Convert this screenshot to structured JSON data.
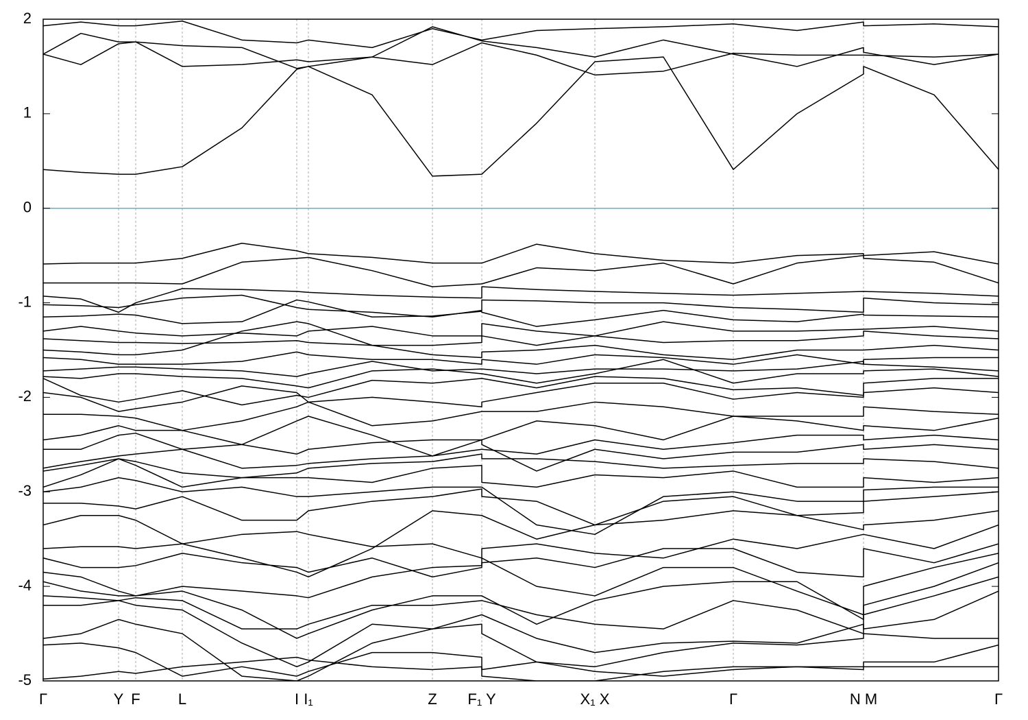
{
  "chart_data": {
    "type": "line",
    "color": "#000000",
    "grid": true,
    "zero_line": {
      "value": 0,
      "color": "#5bb3cf"
    },
    "xlim": [
      0,
      1.394
    ],
    "ylim": [
      -5,
      2
    ],
    "yticks": [
      -5,
      -4,
      -3,
      -2,
      -1,
      0,
      1,
      2
    ],
    "xticks": [
      {
        "value": 0,
        "label": "Γ"
      },
      {
        "value": 0.11,
        "label": "Y"
      },
      {
        "value": 0.135,
        "label": "F"
      },
      {
        "value": 0.203,
        "label": "L"
      },
      {
        "value": 0.37,
        "label": "I"
      },
      {
        "value": 0.387,
        "label": "I₁"
      },
      {
        "value": 0.568,
        "label": "Z"
      },
      {
        "value": 0.64,
        "label": "F₁ Y"
      },
      {
        "value": 0.805,
        "label": "X₁ X"
      },
      {
        "value": 1.007,
        "label": "Γ"
      },
      {
        "value": 1.197,
        "label": "N M"
      },
      {
        "value": 1.394,
        "label": "Γ"
      }
    ],
    "x": [
      0,
      0.055,
      0.11,
      0.135,
      0.203,
      0.29,
      0.37,
      0.387,
      0.48,
      0.568,
      0.64,
      0.64,
      0.72,
      0.805,
      0.905,
      1.007,
      1.1,
      1.197,
      1.197,
      1.3,
      1.394
    ],
    "series": [
      {
        "values": [
          0.41,
          0.38,
          0.36,
          0.36,
          0.44,
          0.85,
          1.47,
          1.5,
          1.2,
          0.34,
          0.36,
          0.36,
          0.9,
          1.55,
          1.6,
          0.41,
          1.0,
          1.42,
          1.5,
          1.2,
          0.41
        ]
      },
      {
        "values": [
          1.63,
          1.52,
          1.74,
          1.76,
          1.5,
          1.52,
          1.57,
          1.55,
          1.6,
          1.52,
          1.75,
          1.75,
          1.62,
          1.41,
          1.45,
          1.64,
          1.62,
          1.62,
          1.62,
          1.6,
          1.63
        ]
      },
      {
        "values": [
          1.63,
          1.85,
          1.76,
          1.76,
          1.72,
          1.7,
          1.48,
          1.5,
          1.6,
          1.92,
          1.77,
          1.77,
          1.7,
          1.6,
          1.78,
          1.63,
          1.5,
          1.7,
          1.65,
          1.52,
          1.63
        ]
      },
      {
        "values": [
          1.93,
          1.97,
          1.93,
          1.93,
          1.98,
          1.78,
          1.75,
          1.78,
          1.7,
          1.9,
          1.78,
          1.78,
          1.88,
          1.9,
          1.92,
          1.95,
          1.88,
          1.97,
          1.93,
          1.95,
          1.92
        ]
      },
      {
        "values": [
          -0.59,
          -0.58,
          -0.58,
          -0.58,
          -0.53,
          -0.37,
          -0.45,
          -0.48,
          -0.52,
          -0.58,
          -0.58,
          -0.58,
          -0.38,
          -0.48,
          -0.55,
          -0.58,
          -0.5,
          -0.48,
          -0.5,
          -0.46,
          -0.59
        ]
      },
      {
        "values": [
          -0.79,
          -0.79,
          -0.79,
          -0.79,
          -0.8,
          -0.57,
          -0.53,
          -0.52,
          -0.66,
          -0.83,
          -0.8,
          -0.8,
          -0.63,
          -0.66,
          -0.58,
          -0.8,
          -0.58,
          -0.5,
          -0.53,
          -0.57,
          -0.79
        ]
      },
      {
        "values": [
          -0.93,
          -0.96,
          -1.1,
          -1.0,
          -0.85,
          -0.86,
          -0.88,
          -0.89,
          -0.92,
          -0.94,
          -0.95,
          -0.83,
          -0.86,
          -0.88,
          -0.9,
          -0.92,
          -0.9,
          -0.88,
          -0.88,
          -0.9,
          -0.93
        ]
      },
      {
        "values": [
          -1.02,
          -1.03,
          -1.05,
          -1.02,
          -0.95,
          -0.92,
          -1.05,
          -1.07,
          -1.1,
          -1.15,
          -1.08,
          -0.97,
          -0.98,
          -1.0,
          -1.0,
          -1.05,
          -1.07,
          -1.1,
          -0.95,
          -1.0,
          -1.02
        ]
      },
      {
        "values": [
          -1.15,
          -1.14,
          -1.12,
          -1.13,
          -1.22,
          -1.2,
          -0.97,
          -0.99,
          -1.15,
          -1.14,
          -1.09,
          -1.1,
          -1.25,
          -1.18,
          -1.08,
          -1.18,
          -1.2,
          -1.12,
          -1.13,
          -1.14,
          -1.15
        ]
      },
      {
        "values": [
          -1.3,
          -1.25,
          -1.3,
          -1.32,
          -1.35,
          -1.32,
          -1.35,
          -1.3,
          -1.25,
          -1.35,
          -1.35,
          -1.22,
          -1.3,
          -1.35,
          -1.2,
          -1.3,
          -1.3,
          -1.28,
          -1.28,
          -1.25,
          -1.3
        ]
      },
      {
        "values": [
          -1.38,
          -1.4,
          -1.42,
          -1.42,
          -1.43,
          -1.42,
          -1.4,
          -1.42,
          -1.45,
          -1.45,
          -1.42,
          -1.35,
          -1.45,
          -1.35,
          -1.42,
          -1.4,
          -1.4,
          -1.35,
          -1.3,
          -1.35,
          -1.38
        ]
      },
      {
        "values": [
          -1.5,
          -1.52,
          -1.55,
          -1.55,
          -1.5,
          -1.3,
          -1.2,
          -1.22,
          -1.45,
          -1.55,
          -1.58,
          -1.52,
          -1.5,
          -1.45,
          -1.55,
          -1.6,
          -1.5,
          -1.5,
          -1.5,
          -1.45,
          -1.5
        ]
      },
      {
        "values": [
          -1.58,
          -1.6,
          -1.65,
          -1.65,
          -1.65,
          -1.62,
          -1.52,
          -1.55,
          -1.6,
          -1.6,
          -1.65,
          -1.6,
          -1.65,
          -1.55,
          -1.58,
          -1.65,
          -1.55,
          -1.65,
          -1.6,
          -1.58,
          -1.58
        ]
      },
      {
        "values": [
          -1.72,
          -1.7,
          -1.68,
          -1.68,
          -1.7,
          -1.72,
          -1.78,
          -1.75,
          -1.62,
          -1.72,
          -1.7,
          -1.7,
          -1.75,
          -1.7,
          -1.7,
          -1.72,
          -1.7,
          -1.62,
          -1.65,
          -1.68,
          -1.72
        ]
      },
      {
        "values": [
          -1.78,
          -1.8,
          -1.75,
          -1.75,
          -1.78,
          -1.8,
          -1.88,
          -1.9,
          -1.72,
          -1.7,
          -1.75,
          -1.75,
          -1.85,
          -1.75,
          -1.6,
          -1.85,
          -1.75,
          -1.75,
          -1.72,
          -1.7,
          -1.78
        ]
      },
      {
        "values": [
          -1.8,
          -1.98,
          -2.05,
          -2.02,
          -1.93,
          -2.08,
          -1.98,
          -2.0,
          -1.82,
          -1.85,
          -1.8,
          -1.8,
          -1.9,
          -1.78,
          -1.8,
          -1.92,
          -1.9,
          -1.98,
          -1.85,
          -1.8,
          -1.8
        ]
      },
      {
        "values": [
          -1.95,
          -2.0,
          -2.15,
          -2.12,
          -2.05,
          -1.88,
          -1.95,
          -2.05,
          -2.0,
          -2.05,
          -2.1,
          -2.05,
          -1.95,
          -1.85,
          -1.85,
          -2.02,
          -1.95,
          -2.0,
          -1.95,
          -1.9,
          -1.95
        ]
      },
      {
        "values": [
          -2.18,
          -2.18,
          -2.2,
          -2.22,
          -2.35,
          -2.25,
          -2.1,
          -2.05,
          -2.3,
          -2.25,
          -2.15,
          -2.15,
          -2.15,
          -2.05,
          -2.1,
          -2.2,
          -2.2,
          -2.2,
          -2.1,
          -2.15,
          -2.18
        ]
      },
      {
        "values": [
          -2.45,
          -2.4,
          -2.3,
          -2.35,
          -2.35,
          -2.5,
          -2.6,
          -2.55,
          -2.48,
          -2.45,
          -2.45,
          -2.45,
          -2.25,
          -2.3,
          -2.45,
          -2.2,
          -2.25,
          -2.35,
          -2.3,
          -2.35,
          -2.22
        ]
      },
      {
        "values": [
          -2.55,
          -2.55,
          -2.4,
          -2.38,
          -2.55,
          -2.75,
          -2.72,
          -2.7,
          -2.65,
          -2.62,
          -2.55,
          -2.55,
          -2.6,
          -2.45,
          -2.55,
          -2.48,
          -2.4,
          -2.4,
          -2.45,
          -2.4,
          -2.45
        ]
      },
      {
        "values": [
          -2.75,
          -2.68,
          -2.62,
          -2.6,
          -2.55,
          -2.5,
          -2.25,
          -2.2,
          -2.4,
          -2.62,
          -2.45,
          -2.5,
          -2.78,
          -2.55,
          -2.65,
          -2.58,
          -2.58,
          -2.5,
          -2.55,
          -2.5,
          -2.55
        ]
      },
      {
        "values": [
          -2.78,
          -2.72,
          -2.65,
          -2.68,
          -2.8,
          -2.85,
          -2.8,
          -2.75,
          -2.7,
          -2.68,
          -2.6,
          -2.65,
          -2.65,
          -2.68,
          -2.75,
          -2.72,
          -2.7,
          -2.7,
          -2.65,
          -2.68,
          -2.75
        ]
      },
      {
        "values": [
          -2.95,
          -2.82,
          -2.65,
          -2.72,
          -2.95,
          -2.85,
          -2.85,
          -2.85,
          -2.9,
          -2.75,
          -2.72,
          -2.9,
          -2.95,
          -2.82,
          -2.85,
          -2.78,
          -2.95,
          -2.95,
          -2.85,
          -2.9,
          -2.85
        ]
      },
      {
        "values": [
          -3.0,
          -2.95,
          -2.85,
          -2.88,
          -3.0,
          -2.95,
          -3.05,
          -3.05,
          -3.0,
          -2.95,
          -2.95,
          -2.95,
          -3.35,
          -3.45,
          -3.05,
          -3.0,
          -3.1,
          -3.1,
          -2.98,
          -2.95,
          -2.95
        ]
      },
      {
        "values": [
          -3.12,
          -3.12,
          -3.15,
          -3.18,
          -3.05,
          -3.3,
          -3.3,
          -3.2,
          -3.1,
          -3.05,
          -2.97,
          -3.05,
          -3.1,
          -3.35,
          -3.1,
          -3.05,
          -3.25,
          -3.22,
          -3.1,
          -3.05,
          -3.0
        ]
      },
      {
        "values": [
          -3.35,
          -3.25,
          -3.25,
          -3.3,
          -3.55,
          -3.7,
          -3.85,
          -3.9,
          -3.6,
          -3.2,
          -3.25,
          -3.25,
          -3.5,
          -3.35,
          -3.3,
          -3.2,
          -3.25,
          -3.4,
          -3.35,
          -3.3,
          -3.2
        ]
      },
      {
        "values": [
          -3.6,
          -3.58,
          -3.58,
          -3.6,
          -3.55,
          -3.45,
          -3.42,
          -3.45,
          -3.58,
          -3.55,
          -3.7,
          -3.6,
          -3.55,
          -3.65,
          -3.7,
          -3.5,
          -3.6,
          -3.45,
          -3.45,
          -3.6,
          -3.35
        ]
      },
      {
        "values": [
          -3.7,
          -3.8,
          -3.8,
          -3.78,
          -3.65,
          -3.75,
          -3.8,
          -3.85,
          -3.7,
          -3.9,
          -3.8,
          -3.75,
          -3.7,
          -3.8,
          -3.6,
          -3.6,
          -3.85,
          -3.9,
          -3.6,
          -3.75,
          -3.55
        ]
      },
      {
        "values": [
          -3.85,
          -3.9,
          -4.05,
          -4.1,
          -4.0,
          -4.05,
          -4.1,
          -4.12,
          -3.9,
          -3.8,
          -3.78,
          -3.7,
          -4.0,
          -4.1,
          -3.8,
          -3.8,
          -4.05,
          -4.3,
          -4.0,
          -3.8,
          -3.65
        ]
      },
      {
        "values": [
          -3.95,
          -4.05,
          -4.1,
          -4.1,
          -4.05,
          -4.25,
          -4.55,
          -4.5,
          -4.25,
          -4.1,
          -4.1,
          -4.1,
          -4.4,
          -4.15,
          -4.0,
          -3.95,
          -3.95,
          -4.35,
          -4.2,
          -4.0,
          -3.75
        ]
      },
      {
        "values": [
          -4.1,
          -4.12,
          -4.15,
          -4.12,
          -4.15,
          -4.45,
          -4.45,
          -4.4,
          -4.2,
          -4.2,
          -4.15,
          -4.15,
          -4.3,
          -4.4,
          -4.45,
          -4.15,
          -4.25,
          -4.5,
          -4.3,
          -4.1,
          -3.9
        ]
      },
      {
        "values": [
          -4.2,
          -4.2,
          -4.15,
          -4.2,
          -4.25,
          -4.6,
          -4.85,
          -4.8,
          -4.4,
          -4.45,
          -4.3,
          -4.3,
          -4.55,
          -4.7,
          -4.6,
          -4.58,
          -4.6,
          -4.4,
          -4.45,
          -4.35,
          -4.05
        ]
      },
      {
        "values": [
          -4.55,
          -4.5,
          -4.35,
          -4.4,
          -4.5,
          -4.95,
          -5.0,
          -4.95,
          -4.6,
          -4.45,
          -4.4,
          -4.5,
          -4.8,
          -4.85,
          -4.7,
          -4.6,
          -4.62,
          -4.55,
          -4.5,
          -4.55,
          -4.55
        ]
      },
      {
        "values": [
          -4.62,
          -4.6,
          -4.65,
          -4.7,
          -4.95,
          -4.85,
          -4.95,
          -4.9,
          -4.7,
          -4.7,
          -4.75,
          -4.88,
          -4.8,
          -4.9,
          -4.95,
          -4.88,
          -4.85,
          -4.88,
          -4.8,
          -4.8,
          -4.62
        ]
      },
      {
        "values": [
          -4.98,
          -4.95,
          -4.9,
          -4.92,
          -4.85,
          -4.8,
          -4.75,
          -4.78,
          -4.85,
          -4.88,
          -4.85,
          -4.95,
          -5.0,
          -5.0,
          -4.9,
          -4.85,
          -4.85,
          -4.85,
          -4.85,
          -4.85,
          -4.85
        ]
      }
    ]
  }
}
